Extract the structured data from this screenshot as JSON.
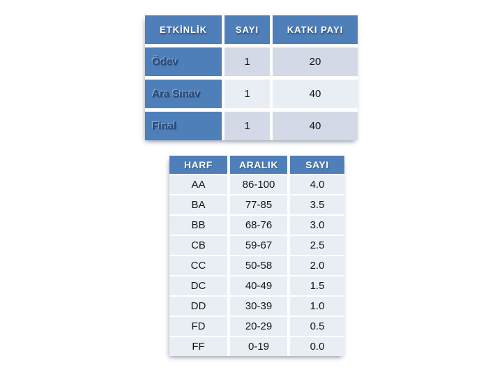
{
  "slide": {
    "background": "#FFFFFF"
  },
  "colors": {
    "header_blue": "#4E7FB9",
    "band_dark": "#D3D9E6",
    "band_light": "#E9EDF4",
    "row_light": "#E9EEF5",
    "label_navy": "#25497A",
    "data_text": "#141414",
    "header_text": "#FFFFFF"
  },
  "activities_table": {
    "headers": [
      "ETKİNLİK",
      "SAYI",
      "KATKI PAYI"
    ],
    "rows": [
      {
        "label": "Ödev",
        "sayi": "1",
        "katki_payi": "20"
      },
      {
        "label": "Ara Sınav",
        "sayi": "1",
        "katki_payi": "40"
      },
      {
        "label": "Final",
        "sayi": "1",
        "katki_payi": "40"
      }
    ]
  },
  "grades_table": {
    "headers": [
      "HARF",
      "ARALIK",
      "SAYI"
    ],
    "rows": [
      {
        "harf": "AA",
        "aralik": "86-100",
        "sayi": "4.0"
      },
      {
        "harf": "BA",
        "aralik": "77-85",
        "sayi": "3.5"
      },
      {
        "harf": "BB",
        "aralik": "68-76",
        "sayi": "3.0"
      },
      {
        "harf": "CB",
        "aralik": "59-67",
        "sayi": "2.5"
      },
      {
        "harf": "CC",
        "aralik": "50-58",
        "sayi": "2.0"
      },
      {
        "harf": "DC",
        "aralik": "40-49",
        "sayi": "1.5"
      },
      {
        "harf": "DD",
        "aralik": "30-39",
        "sayi": "1.0"
      },
      {
        "harf": "FD",
        "aralik": "20-29",
        "sayi": "0.5"
      },
      {
        "harf": "FF",
        "aralik": "0-19",
        "sayi": "0.0"
      }
    ]
  }
}
